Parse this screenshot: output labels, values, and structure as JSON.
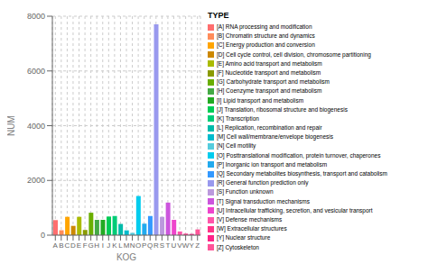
{
  "chart_data": {
    "type": "bar",
    "xlabel": "KOG",
    "ylabel": "NUM",
    "categories": [
      "A",
      "B",
      "C",
      "D",
      "E",
      "F",
      "G",
      "H",
      "I",
      "J",
      "K",
      "L",
      "M",
      "N",
      "O",
      "P",
      "Q",
      "R",
      "S",
      "T",
      "U",
      "V",
      "W",
      "Y",
      "Z"
    ],
    "values": [
      550,
      180,
      670,
      340,
      670,
      190,
      820,
      560,
      560,
      680,
      700,
      410,
      175,
      85,
      1430,
      420,
      700,
      7700,
      670,
      1190,
      560,
      135,
      55,
      45,
      210
    ],
    "colors": [
      "#FF6E6E",
      "#FF8C5A",
      "#FFA500",
      "#CC8800",
      "#AABB00",
      "#8B9B00",
      "#6AAE00",
      "#44AA44",
      "#22AA22",
      "#00CC55",
      "#00CC77",
      "#00BBAA",
      "#00BBCC",
      "#55CCDD",
      "#00CCEE",
      "#22AAEE",
      "#3399FF",
      "#9999EE",
      "#BB99DD",
      "#CC55DD",
      "#EE44CC",
      "#FF55AA",
      "#FF3388",
      "#FF2288",
      "#FF5599"
    ],
    "legend_title": "TYPE",
    "legend_labels": [
      "[A] RNA processing and modification",
      "[B] Chromatin structure and dynamics",
      "[C] Energy production and conversion",
      "[D] Cell cycle control, cell division, chromosome partitioning",
      "[E] Amino acid transport and metabolism",
      "[F] Nucleotide transport and metabolism",
      "[G] Carbohydrate transport and metabolism",
      "[H] Coenzyme transport and metabolism",
      "[I] Lipid transport and metabolism",
      "[J] Translation, ribosomal structure and biogenesis",
      "[K] Transcription",
      "[L] Replication, recombination and repair",
      "[M] Cell wall/membrane/envelope biogenesis",
      "[N] Cell motility",
      "[O] Posttranslational modification, protein turnover, chaperones",
      "[P] Inorganic ion transport and metabolism",
      "[Q] Secondary metabolites biosynthesis, transport and catabolism",
      "[R] General function prediction only",
      "[S] Function unknown",
      "[T] Signal transduction mechanisms",
      "[U] Intracellular trafficking, secretion, and vesicular transport",
      "[V] Defense mechanisms",
      "[W] Extracellular structures",
      "[Y] Nuclear structure",
      "[Z] Cytoskeleton"
    ],
    "ylim": [
      0,
      8000
    ],
    "yticks": [
      0,
      2000,
      4000,
      6000,
      8000
    ],
    "grid": true,
    "legend": "right"
  }
}
